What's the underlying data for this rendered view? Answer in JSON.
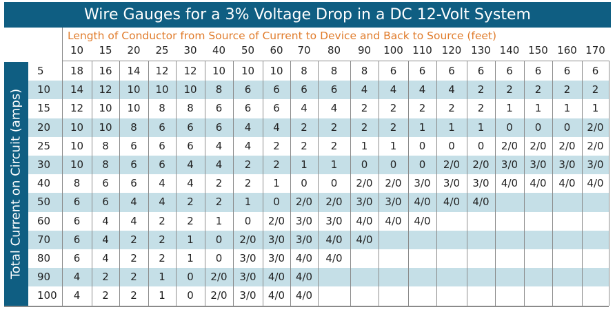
{
  "title": "Wire Gauges for a 3% Voltage Drop in a DC 12-Volt System",
  "column_axis_label": "Length of Conductor from Source of Current to Device and Back to Source (feet)",
  "row_axis_label": "Total Current on Circuit (amps)",
  "colors": {
    "title_bg": "#0f5e82",
    "accent_orange": "#e07b2a",
    "row_stripe": "#c5dfe7",
    "grid_line": "#8a8a8a"
  },
  "lengths_ft": [
    "10",
    "15",
    "20",
    "25",
    "30",
    "40",
    "50",
    "60",
    "70",
    "80",
    "90",
    "100",
    "110",
    "120",
    "130",
    "140",
    "150",
    "160",
    "170"
  ],
  "rows": [
    {
      "amps": "5",
      "gauges": [
        "18",
        "16",
        "14",
        "12",
        "12",
        "10",
        "10",
        "10",
        "8",
        "8",
        "8",
        "6",
        "6",
        "6",
        "6",
        "6",
        "6",
        "6",
        "6"
      ]
    },
    {
      "amps": "10",
      "gauges": [
        "14",
        "12",
        "10",
        "10",
        "10",
        "8",
        "6",
        "6",
        "6",
        "6",
        "4",
        "4",
        "4",
        "4",
        "2",
        "2",
        "2",
        "2",
        "2"
      ]
    },
    {
      "amps": "15",
      "gauges": [
        "12",
        "10",
        "10",
        "8",
        "8",
        "6",
        "6",
        "6",
        "4",
        "4",
        "2",
        "2",
        "2",
        "2",
        "2",
        "1",
        "1",
        "1",
        "1"
      ]
    },
    {
      "amps": "20",
      "gauges": [
        "10",
        "10",
        "8",
        "6",
        "6",
        "6",
        "4",
        "4",
        "2",
        "2",
        "2",
        "2",
        "1",
        "1",
        "1",
        "0",
        "0",
        "0",
        "2/0"
      ]
    },
    {
      "amps": "25",
      "gauges": [
        "10",
        "8",
        "6",
        "6",
        "6",
        "4",
        "4",
        "2",
        "2",
        "2",
        "1",
        "1",
        "0",
        "0",
        "0",
        "2/0",
        "2/0",
        "2/0",
        "2/0"
      ]
    },
    {
      "amps": "30",
      "gauges": [
        "10",
        "8",
        "6",
        "6",
        "4",
        "4",
        "2",
        "2",
        "1",
        "1",
        "0",
        "0",
        "0",
        "2/0",
        "2/0",
        "3/0",
        "3/0",
        "3/0",
        "3/0"
      ]
    },
    {
      "amps": "40",
      "gauges": [
        "8",
        "6",
        "6",
        "4",
        "4",
        "2",
        "2",
        "1",
        "0",
        "0",
        "2/0",
        "2/0",
        "3/0",
        "3/0",
        "3/0",
        "4/0",
        "4/0",
        "4/0",
        "4/0"
      ]
    },
    {
      "amps": "50",
      "gauges": [
        "6",
        "6",
        "4",
        "4",
        "2",
        "2",
        "1",
        "0",
        "2/0",
        "2/0",
        "3/0",
        "3/0",
        "4/0",
        "4/0",
        "4/0",
        "",
        "",
        "",
        ""
      ]
    },
    {
      "amps": "60",
      "gauges": [
        "6",
        "4",
        "4",
        "2",
        "2",
        "1",
        "0",
        "2/0",
        "3/0",
        "3/0",
        "4/0",
        "4/0",
        "4/0",
        "",
        "",
        "",
        "",
        "",
        ""
      ]
    },
    {
      "amps": "70",
      "gauges": [
        "6",
        "4",
        "2",
        "2",
        "1",
        "0",
        "2/0",
        "3/0",
        "3/0",
        "4/0",
        "4/0",
        "",
        "",
        "",
        "",
        "",
        "",
        "",
        ""
      ]
    },
    {
      "amps": "80",
      "gauges": [
        "6",
        "4",
        "2",
        "2",
        "1",
        "0",
        "3/0",
        "3/0",
        "4/0",
        "4/0",
        "",
        "",
        "",
        "",
        "",
        "",
        "",
        "",
        ""
      ]
    },
    {
      "amps": "90",
      "gauges": [
        "4",
        "2",
        "2",
        "1",
        "0",
        "2/0",
        "3/0",
        "4/0",
        "4/0",
        "",
        "",
        "",
        "",
        "",
        "",
        "",
        "",
        "",
        ""
      ]
    },
    {
      "amps": "100",
      "gauges": [
        "4",
        "2",
        "2",
        "1",
        "0",
        "2/0",
        "3/0",
        "4/0",
        "4/0",
        "",
        "",
        "",
        "",
        "",
        "",
        "",
        "",
        "",
        ""
      ]
    }
  ],
  "chart_data": {
    "type": "table",
    "title": "Wire Gauges for a 3% Voltage Drop in a DC 12-Volt System",
    "xlabel": "Length of Conductor from Source of Current to Device and Back to Source (feet)",
    "ylabel": "Total Current on Circuit (amps)",
    "columns": [
      "10",
      "15",
      "20",
      "25",
      "30",
      "40",
      "50",
      "60",
      "70",
      "80",
      "90",
      "100",
      "110",
      "120",
      "130",
      "140",
      "150",
      "160",
      "170"
    ],
    "row_labels": [
      "5",
      "10",
      "15",
      "20",
      "25",
      "30",
      "40",
      "50",
      "60",
      "70",
      "80",
      "90",
      "100"
    ]
  }
}
